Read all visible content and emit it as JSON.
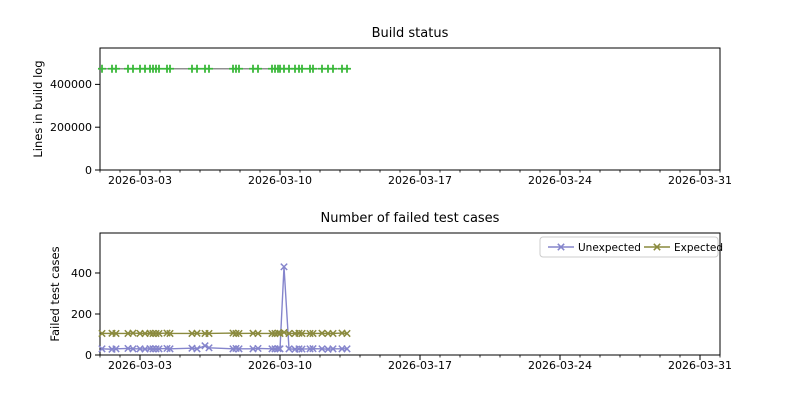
{
  "figure": {
    "background": "#ffffff"
  },
  "colors": {
    "axis": "#000000",
    "tick_label": "#000000",
    "build_line": "#909090",
    "build_marker": "#3ab83a",
    "unexpected": "#8585cc",
    "expected": "#8a8a3d",
    "legend_border": "#cccccc",
    "legend_background": "#ffffff"
  },
  "chart_data": [
    {
      "type": "line",
      "title": "Build status",
      "xlabel": "",
      "ylabel": "Lines in build log",
      "x_range_dates": [
        "2026-03-01",
        "2026-04-01"
      ],
      "xlim_days": [
        0,
        31
      ],
      "x_tick_offsets": [
        2,
        9,
        16,
        23,
        30
      ],
      "x_tick_labels": [
        "2026-03-03",
        "2026-03-10",
        "2026-03-17",
        "2026-03-24",
        "2026-03-31"
      ],
      "x_minor_ticks_every_day": true,
      "ylim": [
        0,
        570000
      ],
      "y_ticks": [
        0,
        200000,
        400000
      ],
      "y_tick_labels": [
        "0",
        "200000",
        "400000"
      ],
      "grid": false,
      "legend": null,
      "x_offsets_days": [
        0.1,
        0.6,
        0.8,
        1.4,
        1.65,
        2.0,
        2.25,
        2.5,
        2.65,
        2.8,
        2.95,
        3.35,
        3.5,
        4.6,
        4.85,
        5.25,
        5.45,
        6.65,
        6.8,
        6.95,
        7.65,
        7.9,
        8.6,
        8.75,
        8.9,
        9.0,
        9.2,
        9.45,
        9.75,
        9.95,
        10.1,
        10.5,
        10.65,
        11.1,
        11.4,
        11.65,
        12.1,
        12.35
      ],
      "series": [
        {
          "name": "Lines in build log",
          "line_color": "#909090",
          "marker": "plus",
          "marker_color": "#3ab83a",
          "values": [
            473000,
            473000,
            473000,
            473000,
            473000,
            473000,
            473000,
            473000,
            473000,
            473000,
            473000,
            473000,
            473000,
            473000,
            473000,
            473000,
            473000,
            473000,
            473000,
            473000,
            473000,
            473000,
            473000,
            473000,
            473000,
            473000,
            473000,
            473000,
            473000,
            473000,
            473000,
            473000,
            473000,
            473000,
            473000,
            473000,
            473000,
            473000
          ]
        }
      ]
    },
    {
      "type": "line",
      "title": "Number of failed test cases",
      "xlabel": "",
      "ylabel": "Failed test cases",
      "x_range_dates": [
        "2026-03-01",
        "2026-04-01"
      ],
      "xlim_days": [
        0,
        31
      ],
      "x_tick_offsets": [
        2,
        9,
        16,
        23,
        30
      ],
      "x_tick_labels": [
        "2026-03-03",
        "2026-03-10",
        "2026-03-17",
        "2026-03-24",
        "2026-03-31"
      ],
      "x_minor_ticks_every_day": true,
      "ylim": [
        0,
        595
      ],
      "y_ticks": [
        0,
        200,
        400
      ],
      "y_tick_labels": [
        "0",
        "200",
        "400"
      ],
      "grid": false,
      "legend": {
        "position": "upper right",
        "entries": [
          "Unexpected",
          "Expected"
        ]
      },
      "x_offsets_days": [
        0.1,
        0.6,
        0.8,
        1.4,
        1.65,
        2.0,
        2.25,
        2.5,
        2.65,
        2.8,
        2.95,
        3.35,
        3.5,
        4.6,
        4.85,
        5.25,
        5.45,
        6.65,
        6.8,
        6.95,
        7.65,
        7.9,
        8.6,
        8.75,
        8.9,
        9.0,
        9.2,
        9.45,
        9.75,
        9.95,
        10.1,
        10.5,
        10.65,
        11.1,
        11.4,
        11.65,
        12.1,
        12.35
      ],
      "series": [
        {
          "name": "Unexpected",
          "line_color": "#8585cc",
          "marker": "x",
          "marker_color": "#8585cc",
          "values": [
            30,
            28,
            30,
            32,
            30,
            30,
            29,
            31,
            30,
            30,
            30,
            32,
            30,
            33,
            30,
            45,
            35,
            30,
            32,
            30,
            30,
            32,
            30,
            30,
            31,
            30,
            430,
            30,
            28,
            30,
            29,
            30,
            31,
            30,
            28,
            30,
            30,
            30
          ]
        },
        {
          "name": "Expected",
          "line_color": "#8a8a3d",
          "marker": "x",
          "marker_color": "#8a8a3d",
          "values": [
            105,
            106,
            105,
            105,
            107,
            105,
            105,
            106,
            105,
            105,
            105,
            107,
            105,
            105,
            106,
            105,
            105,
            107,
            105,
            105,
            106,
            105,
            105,
            105,
            107,
            105,
            110,
            105,
            105,
            106,
            105,
            105,
            105,
            106,
            105,
            105,
            107,
            105
          ]
        }
      ]
    }
  ]
}
